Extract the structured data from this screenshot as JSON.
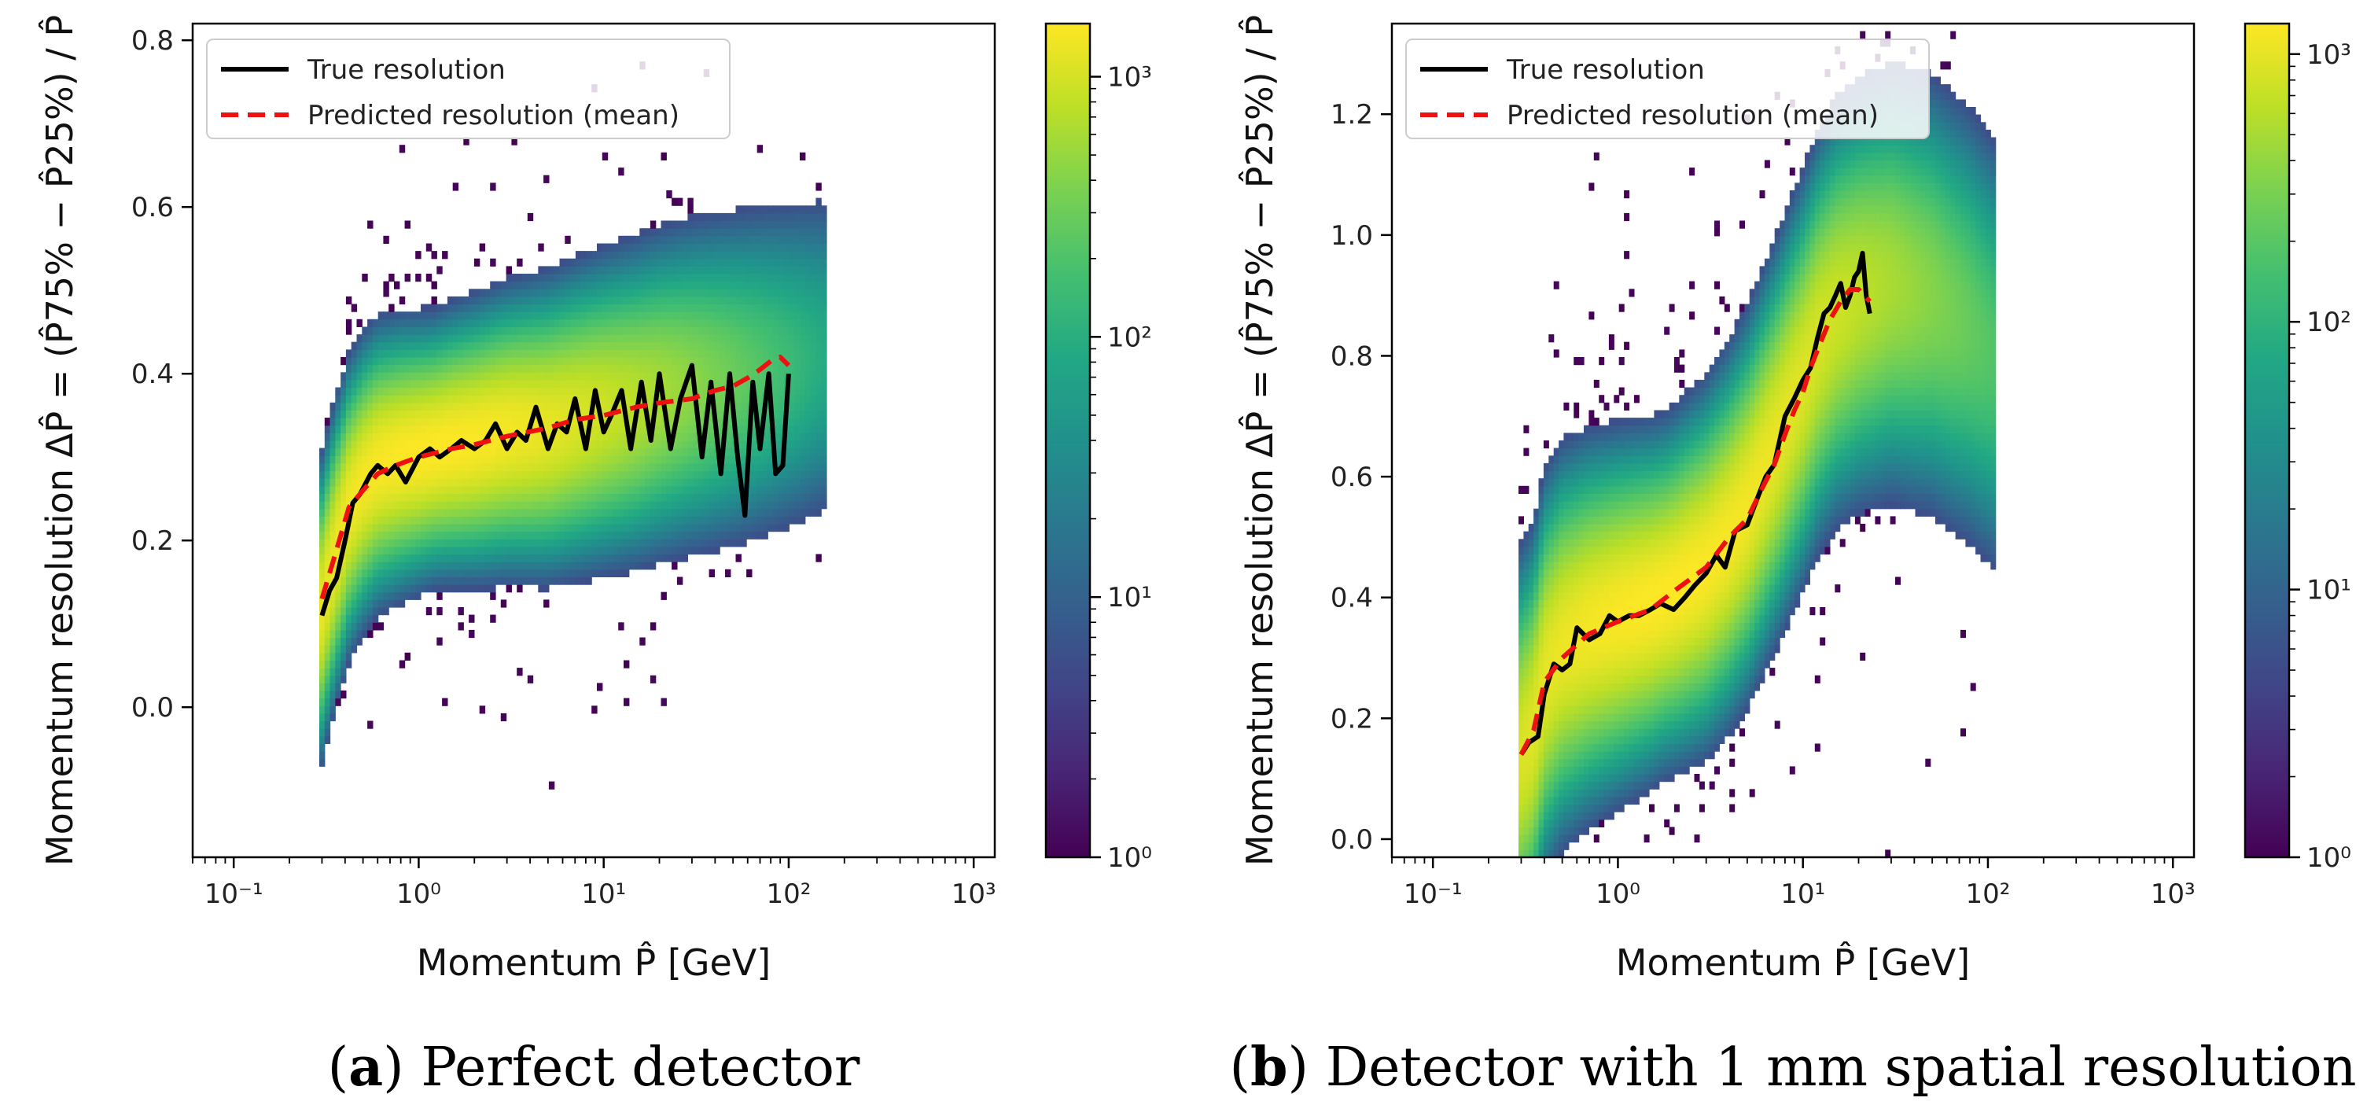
{
  "chart_data": [
    {
      "type": "heatmap",
      "caption_letter": "a",
      "caption_text": "Perfect detector",
      "xlabel": "Momentum P̂ [GeV]",
      "ylabel_prefix": "Momentum resolution",
      "ylabel_formula": "ΔP̂ = (P̂75% − P̂25%) / P̂",
      "xscale": "log",
      "xlim": [
        0.06,
        1300
      ],
      "ylim": [
        -0.18,
        0.82
      ],
      "xticks": [
        {
          "v": 0.1,
          "label": "10⁻¹"
        },
        {
          "v": 1,
          "label": "10⁰"
        },
        {
          "v": 10,
          "label": "10¹"
        },
        {
          "v": 100,
          "label": "10²"
        },
        {
          "v": 1000,
          "label": "10³"
        }
      ],
      "yticks": [
        "0.0",
        "0.2",
        "0.4",
        "0.6",
        "0.8"
      ],
      "colorbar": {
        "scale": "log",
        "min": 1,
        "max": 1600,
        "ticks": [
          {
            "v": 1,
            "label": "10⁰"
          },
          {
            "v": 10,
            "label": "10¹"
          },
          {
            "v": 100,
            "label": "10²"
          },
          {
            "v": 1000,
            "label": "10³"
          }
        ]
      },
      "legend": {
        "position": "top-left",
        "entries": [
          {
            "label": "True resolution",
            "color": "#000000",
            "style": "solid"
          },
          {
            "label": "Predicted resolution (mean)",
            "color": "#ee1111",
            "style": "dashed"
          }
        ]
      },
      "density": {
        "ridge_x": [
          0.3,
          0.33,
          0.37,
          0.42,
          0.5,
          0.6,
          0.8,
          1,
          1.5,
          2,
          3,
          5,
          7,
          10,
          15,
          20,
          30,
          50,
          80,
          100,
          150
        ],
        "ridge_y": [
          0.12,
          0.16,
          0.2,
          0.24,
          0.27,
          0.29,
          0.3,
          0.305,
          0.315,
          0.32,
          0.33,
          0.335,
          0.345,
          0.355,
          0.365,
          0.375,
          0.385,
          0.395,
          0.405,
          0.41,
          0.42
        ],
        "xmin": 0.29,
        "xmax": 160,
        "peak_x": 1.2,
        "width": 0.05
      },
      "series": [
        {
          "name": "True resolution",
          "color": "#000000",
          "x": [
            0.3,
            0.33,
            0.36,
            0.4,
            0.44,
            0.48,
            0.55,
            0.6,
            0.68,
            0.75,
            0.85,
            1,
            1.15,
            1.3,
            1.5,
            1.7,
            2,
            2.3,
            2.6,
            3,
            3.4,
            3.8,
            4.3,
            5,
            5.6,
            6.3,
            7,
            8,
            9,
            10,
            11,
            12.5,
            14,
            16,
            18,
            20,
            23,
            26,
            30,
            34,
            38,
            43,
            48,
            53,
            58,
            64,
            70,
            78,
            85,
            93,
            100
          ],
          "y": [
            0.11,
            0.14,
            0.155,
            0.2,
            0.245,
            0.255,
            0.28,
            0.29,
            0.28,
            0.29,
            0.27,
            0.3,
            0.31,
            0.3,
            0.31,
            0.32,
            0.31,
            0.32,
            0.34,
            0.31,
            0.33,
            0.32,
            0.36,
            0.31,
            0.34,
            0.33,
            0.37,
            0.31,
            0.38,
            0.33,
            0.35,
            0.38,
            0.31,
            0.39,
            0.32,
            0.4,
            0.31,
            0.37,
            0.41,
            0.3,
            0.39,
            0.28,
            0.4,
            0.3,
            0.23,
            0.39,
            0.31,
            0.4,
            0.28,
            0.29,
            0.4
          ]
        },
        {
          "name": "Predicted resolution (mean)",
          "color": "#ee1111",
          "x": [
            0.3,
            0.35,
            0.42,
            0.5,
            0.6,
            0.75,
            1,
            1.5,
            2,
            3,
            5,
            7,
            10,
            15,
            20,
            30,
            40,
            50,
            60,
            70,
            80,
            90,
            100
          ],
          "y": [
            0.13,
            0.18,
            0.24,
            0.26,
            0.28,
            0.29,
            0.3,
            0.31,
            0.315,
            0.325,
            0.335,
            0.345,
            0.35,
            0.36,
            0.365,
            0.37,
            0.38,
            0.385,
            0.395,
            0.405,
            0.415,
            0.42,
            0.41
          ]
        }
      ]
    },
    {
      "type": "heatmap",
      "caption_letter": "b",
      "caption_text": "Detector with 1 mm spatial resolution",
      "xlabel": "Momentum P̂ [GeV]",
      "ylabel_prefix": "Momentum resolution",
      "ylabel_formula": "ΔP̂ = (P̂75% − P̂25%) / P̂",
      "xscale": "log",
      "xlim": [
        0.06,
        1300
      ],
      "ylim": [
        -0.03,
        1.35
      ],
      "xticks": [
        {
          "v": 0.1,
          "label": "10⁻¹"
        },
        {
          "v": 1,
          "label": "10⁰"
        },
        {
          "v": 10,
          "label": "10¹"
        },
        {
          "v": 100,
          "label": "10²"
        },
        {
          "v": 1000,
          "label": "10³"
        }
      ],
      "yticks": [
        "0.0",
        "0.2",
        "0.4",
        "0.6",
        "0.8",
        "1.0",
        "1.2"
      ],
      "colorbar": {
        "scale": "log",
        "min": 1,
        "max": 1300,
        "ticks": [
          {
            "v": 1,
            "label": "10⁰"
          },
          {
            "v": 10,
            "label": "10¹"
          },
          {
            "v": 100,
            "label": "10²"
          },
          {
            "v": 1000,
            "label": "10³"
          }
        ]
      },
      "legend": {
        "position": "top-left",
        "entries": [
          {
            "label": "True resolution",
            "color": "#000000",
            "style": "solid"
          },
          {
            "label": "Predicted resolution (mean)",
            "color": "#ee1111",
            "style": "dashed"
          }
        ]
      },
      "density": {
        "ridge_x": [
          0.3,
          0.35,
          0.4,
          0.5,
          0.7,
          1,
          1.5,
          2,
          3,
          4,
          5,
          7,
          10,
          12,
          15,
          20,
          30,
          50,
          80,
          110
        ],
        "ridge_y": [
          0.14,
          0.18,
          0.27,
          0.32,
          0.35,
          0.37,
          0.39,
          0.41,
          0.45,
          0.5,
          0.55,
          0.65,
          0.76,
          0.82,
          0.87,
          0.9,
          0.92,
          0.9,
          0.85,
          0.8
        ],
        "xmin": 0.29,
        "xmax": 110,
        "peak_x": 1.8,
        "width": 0.09
      },
      "series": [
        {
          "name": "True resolution",
          "color": "#000000",
          "x": [
            0.3,
            0.33,
            0.37,
            0.4,
            0.45,
            0.5,
            0.55,
            0.6,
            0.7,
            0.8,
            0.9,
            1,
            1.15,
            1.3,
            1.5,
            1.7,
            2,
            2.3,
            2.6,
            3,
            3.4,
            3.8,
            4.3,
            5,
            5.6,
            6.3,
            7,
            8,
            9,
            10,
            11,
            12,
            13,
            14,
            15,
            16,
            17,
            18,
            19,
            20,
            21,
            22,
            23
          ],
          "y": [
            0.14,
            0.16,
            0.17,
            0.24,
            0.29,
            0.28,
            0.29,
            0.35,
            0.33,
            0.34,
            0.37,
            0.36,
            0.37,
            0.37,
            0.38,
            0.39,
            0.38,
            0.4,
            0.42,
            0.44,
            0.47,
            0.45,
            0.51,
            0.52,
            0.56,
            0.6,
            0.62,
            0.7,
            0.73,
            0.76,
            0.78,
            0.83,
            0.87,
            0.88,
            0.9,
            0.92,
            0.88,
            0.9,
            0.93,
            0.94,
            0.97,
            0.9,
            0.87
          ]
        },
        {
          "name": "Predicted resolution (mean)",
          "color": "#ee1111",
          "x": [
            0.3,
            0.35,
            0.4,
            0.5,
            0.7,
            1,
            1.5,
            2,
            3,
            4,
            5,
            6,
            7,
            8,
            9,
            10,
            11,
            12,
            14,
            16,
            18,
            20,
            23
          ],
          "y": [
            0.14,
            0.18,
            0.26,
            0.3,
            0.34,
            0.36,
            0.38,
            0.41,
            0.45,
            0.5,
            0.53,
            0.58,
            0.62,
            0.67,
            0.71,
            0.74,
            0.78,
            0.81,
            0.86,
            0.89,
            0.91,
            0.91,
            0.89
          ]
        }
      ]
    }
  ]
}
